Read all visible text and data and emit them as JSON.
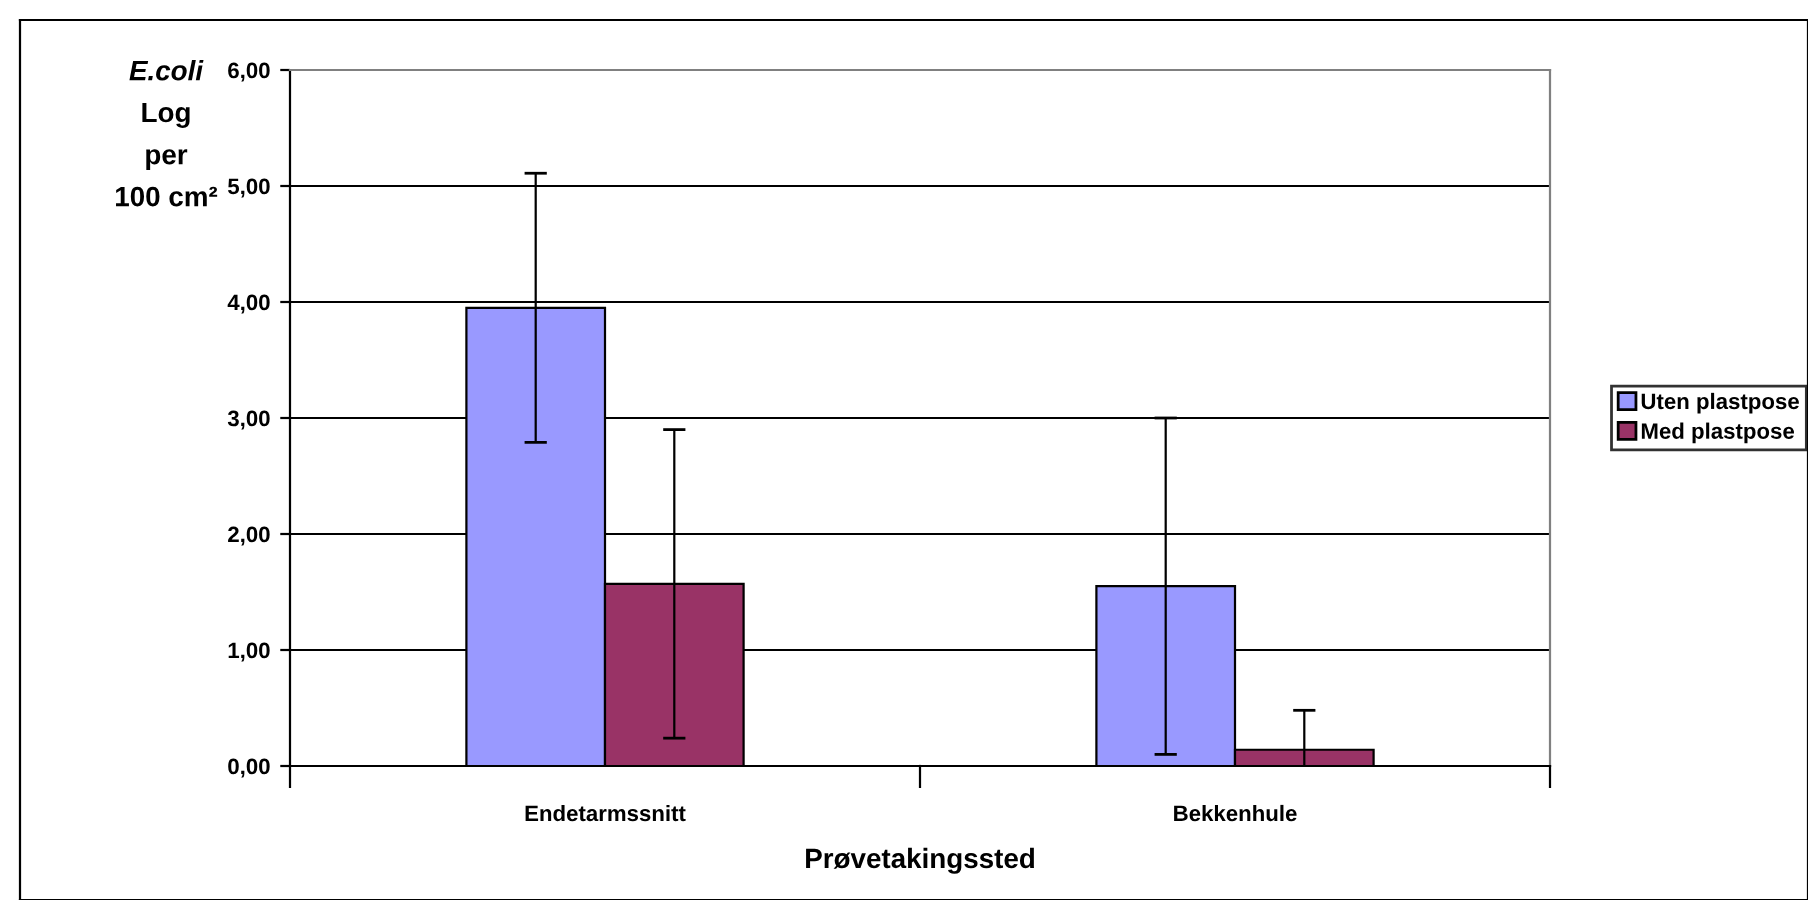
{
  "chart_data": {
    "type": "bar",
    "xlabel": "Prøvetakingssted",
    "ylabel": "E.coli\nLog\nper\n100 cm²",
    "categories": [
      "Endetarmssnitt",
      "Bekkenhule"
    ],
    "series": [
      {
        "name": "Uten plastpose",
        "color": "#9999ff",
        "values": [
          3.95,
          1.55
        ],
        "errors": [
          1.16,
          1.45
        ]
      },
      {
        "name": "Med plastpose",
        "color": "#993366",
        "values": [
          1.57,
          0.14
        ],
        "errors": [
          1.33,
          0.34
        ]
      }
    ],
    "ylim": [
      0,
      6
    ],
    "yticks": [
      {
        "value": 0,
        "label": "0,00"
      },
      {
        "value": 1,
        "label": "1,00"
      },
      {
        "value": 2,
        "label": "2,00"
      },
      {
        "value": 3,
        "label": "3,00"
      },
      {
        "value": 4,
        "label": "4,00"
      },
      {
        "value": 5,
        "label": "5,00"
      },
      {
        "value": 6,
        "label": "6,00"
      }
    ],
    "grid": "y",
    "legend": "right"
  }
}
